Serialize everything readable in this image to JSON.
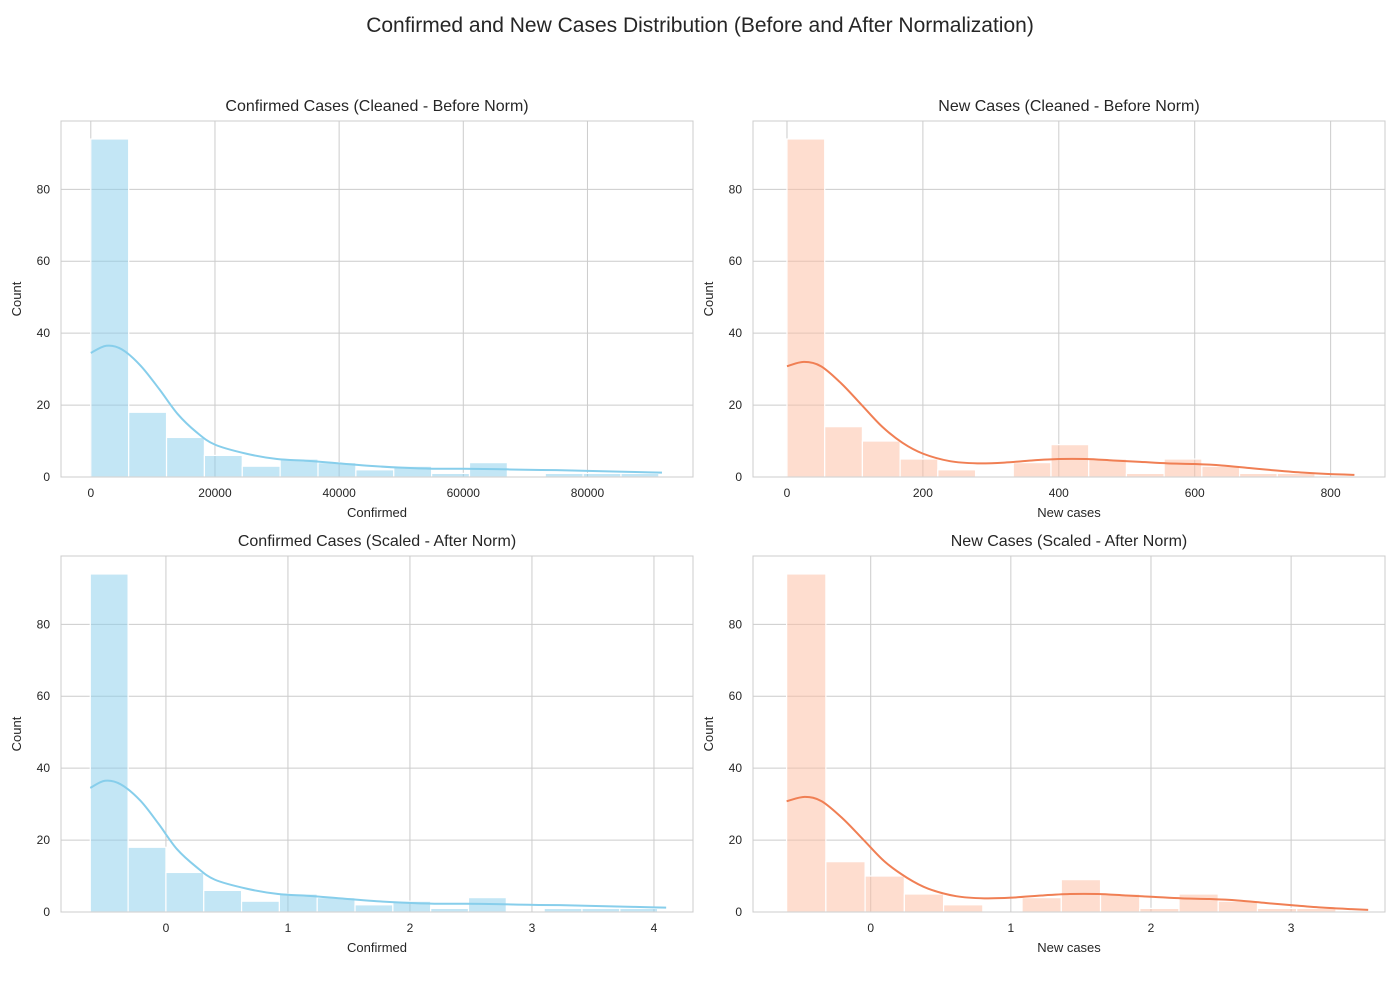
{
  "figure": {
    "title": "Confirmed and New Cases Distribution (Before and After Normalization)"
  },
  "chart_data": [
    {
      "type": "bar",
      "subtype": "histogram_with_kde",
      "title": "Confirmed Cases (Cleaned - Before Norm)",
      "xlabel": "Confirmed",
      "ylabel": "Count",
      "color": "#87CEEB",
      "line_color": "#87CEEB",
      "xlim": [
        -4800,
        97000
      ],
      "ylim": [
        0,
        99
      ],
      "xticks": [
        0,
        20000,
        40000,
        60000,
        80000
      ],
      "yticks": [
        0,
        20,
        40,
        60,
        80
      ],
      "grid": true,
      "bins": [
        {
          "x0": 0,
          "x1": 6100,
          "count": 94
        },
        {
          "x0": 6100,
          "x1": 12200,
          "count": 18
        },
        {
          "x0": 12200,
          "x1": 18300,
          "count": 11
        },
        {
          "x0": 18300,
          "x1": 24400,
          "count": 6
        },
        {
          "x0": 24400,
          "x1": 30500,
          "count": 3
        },
        {
          "x0": 30500,
          "x1": 36600,
          "count": 5
        },
        {
          "x0": 36600,
          "x1": 42700,
          "count": 4
        },
        {
          "x0": 42700,
          "x1": 48800,
          "count": 2
        },
        {
          "x0": 48800,
          "x1": 54900,
          "count": 3
        },
        {
          "x0": 54900,
          "x1": 61000,
          "count": 1
        },
        {
          "x0": 61000,
          "x1": 67100,
          "count": 4
        },
        {
          "x0": 67100,
          "x1": 73200,
          "count": 0
        },
        {
          "x0": 73200,
          "x1": 79300,
          "count": 1
        },
        {
          "x0": 79300,
          "x1": 85400,
          "count": 1
        },
        {
          "x0": 85400,
          "x1": 91500,
          "count": 1
        }
      ],
      "kde": {
        "x": [
          0,
          2500,
          5000,
          8000,
          11000,
          14000,
          17000,
          20000,
          25000,
          30000,
          35000,
          40000,
          45000,
          50000,
          55000,
          60000,
          65000,
          70000,
          75000,
          80000,
          85000,
          90000,
          92000
        ],
        "y": [
          34.5,
          36.5,
          35.5,
          31,
          24.5,
          17.5,
          12.5,
          9,
          6.5,
          5,
          4.5,
          3.8,
          3.1,
          2.6,
          2.3,
          2.3,
          2.2,
          2,
          1.9,
          1.7,
          1.5,
          1.3,
          1.2
        ]
      }
    },
    {
      "type": "bar",
      "subtype": "histogram_with_kde",
      "title": "New Cases (Cleaned - Before Norm)",
      "xlabel": "New cases",
      "ylabel": "Count",
      "color": "#FDBBA0",
      "line_color": "#F07F54",
      "xlim": [
        -50,
        880
      ],
      "ylim": [
        0,
        99
      ],
      "xticks": [
        0,
        200,
        400,
        600,
        800
      ],
      "yticks": [
        0,
        20,
        40,
        60,
        80
      ],
      "grid": true,
      "bins": [
        {
          "x0": 0,
          "x1": 55.5,
          "count": 94
        },
        {
          "x0": 55.5,
          "x1": 111,
          "count": 14
        },
        {
          "x0": 111,
          "x1": 166.5,
          "count": 10
        },
        {
          "x0": 166.5,
          "x1": 222,
          "count": 5
        },
        {
          "x0": 222,
          "x1": 277.5,
          "count": 2
        },
        {
          "x0": 277.5,
          "x1": 333,
          "count": 0
        },
        {
          "x0": 333,
          "x1": 388.5,
          "count": 4
        },
        {
          "x0": 388.5,
          "x1": 444,
          "count": 9
        },
        {
          "x0": 444,
          "x1": 499.5,
          "count": 5
        },
        {
          "x0": 499.5,
          "x1": 555,
          "count": 1
        },
        {
          "x0": 555,
          "x1": 610.5,
          "count": 5
        },
        {
          "x0": 610.5,
          "x1": 666,
          "count": 3
        },
        {
          "x0": 666,
          "x1": 721.5,
          "count": 1
        },
        {
          "x0": 721.5,
          "x1": 777,
          "count": 1
        },
        {
          "x0": 777,
          "x1": 832.5,
          "count": 0
        }
      ],
      "kde": {
        "x": [
          0,
          25,
          50,
          80,
          110,
          140,
          170,
          200,
          240,
          280,
          320,
          360,
          400,
          440,
          480,
          520,
          560,
          600,
          640,
          680,
          720,
          760,
          800,
          835
        ],
        "y": [
          30.8,
          32,
          30.8,
          26,
          20,
          14,
          9.5,
          6.5,
          4.4,
          3.8,
          4,
          4.6,
          5,
          5,
          4.6,
          4.2,
          3.8,
          3.6,
          3.2,
          2.5,
          1.8,
          1.2,
          0.8,
          0.6
        ]
      }
    },
    {
      "type": "bar",
      "subtype": "histogram_with_kde",
      "title": "Confirmed Cases (Scaled - After Norm)",
      "xlabel": "Confirmed",
      "ylabel": "Count",
      "color": "#87CEEB",
      "line_color": "#87CEEB",
      "xlim": [
        -0.86,
        4.32
      ],
      "ylim": [
        0,
        99
      ],
      "xticks": [
        0,
        1,
        2,
        3,
        4
      ],
      "yticks": [
        0,
        20,
        40,
        60,
        80
      ],
      "grid": true,
      "bins": [
        {
          "x0": -0.62,
          "x1": -0.31,
          "count": 94
        },
        {
          "x0": -0.31,
          "x1": 0.0,
          "count": 18
        },
        {
          "x0": 0.0,
          "x1": 0.31,
          "count": 11
        },
        {
          "x0": 0.31,
          "x1": 0.62,
          "count": 6
        },
        {
          "x0": 0.62,
          "x1": 0.93,
          "count": 3
        },
        {
          "x0": 0.93,
          "x1": 1.24,
          "count": 5
        },
        {
          "x0": 1.24,
          "x1": 1.55,
          "count": 4
        },
        {
          "x0": 1.55,
          "x1": 1.86,
          "count": 2
        },
        {
          "x0": 1.86,
          "x1": 2.17,
          "count": 3
        },
        {
          "x0": 2.17,
          "x1": 2.48,
          "count": 1
        },
        {
          "x0": 2.48,
          "x1": 2.79,
          "count": 4
        },
        {
          "x0": 2.79,
          "x1": 3.1,
          "count": 0
        },
        {
          "x0": 3.1,
          "x1": 3.41,
          "count": 1
        },
        {
          "x0": 3.41,
          "x1": 3.72,
          "count": 1
        },
        {
          "x0": 3.72,
          "x1": 4.03,
          "count": 1
        }
      ],
      "kde": {
        "x": [
          -0.62,
          -0.5,
          -0.37,
          -0.21,
          -0.06,
          0.09,
          0.25,
          0.4,
          0.66,
          0.92,
          1.17,
          1.43,
          1.69,
          1.94,
          2.2,
          2.46,
          2.71,
          2.97,
          3.23,
          3.48,
          3.74,
          4.0,
          4.1
        ],
        "y": [
          34.5,
          36.5,
          35.5,
          31,
          24.5,
          17.5,
          12.5,
          9,
          6.5,
          5,
          4.5,
          3.8,
          3.1,
          2.6,
          2.3,
          2.3,
          2.2,
          2,
          1.9,
          1.7,
          1.5,
          1.3,
          1.2
        ]
      }
    },
    {
      "type": "bar",
      "subtype": "histogram_with_kde",
      "title": "New Cases (Scaled - After Norm)",
      "xlabel": "New cases",
      "ylabel": "Count",
      "color": "#FDBBA0",
      "line_color": "#F07F54",
      "xlim": [
        -0.84,
        3.67
      ],
      "ylim": [
        0,
        99
      ],
      "xticks": [
        0,
        1,
        2,
        3
      ],
      "yticks": [
        0,
        20,
        40,
        60,
        80
      ],
      "grid": true,
      "bins": [
        {
          "x0": -0.6,
          "x1": -0.32,
          "count": 94
        },
        {
          "x0": -0.32,
          "x1": -0.04,
          "count": 14
        },
        {
          "x0": -0.04,
          "x1": 0.24,
          "count": 10
        },
        {
          "x0": 0.24,
          "x1": 0.52,
          "count": 5
        },
        {
          "x0": 0.52,
          "x1": 0.8,
          "count": 2
        },
        {
          "x0": 0.8,
          "x1": 1.08,
          "count": 0
        },
        {
          "x0": 1.08,
          "x1": 1.36,
          "count": 4
        },
        {
          "x0": 1.36,
          "x1": 1.64,
          "count": 9
        },
        {
          "x0": 1.64,
          "x1": 1.92,
          "count": 5
        },
        {
          "x0": 1.92,
          "x1": 2.2,
          "count": 1
        },
        {
          "x0": 2.2,
          "x1": 2.48,
          "count": 5
        },
        {
          "x0": 2.48,
          "x1": 2.76,
          "count": 3
        },
        {
          "x0": 2.76,
          "x1": 3.04,
          "count": 1
        },
        {
          "x0": 3.04,
          "x1": 3.32,
          "count": 1
        },
        {
          "x0": 3.32,
          "x1": 3.6,
          "count": 0
        }
      ],
      "kde": {
        "x": [
          -0.6,
          -0.47,
          -0.35,
          -0.2,
          -0.05,
          0.1,
          0.26,
          0.41,
          0.61,
          0.81,
          1.01,
          1.22,
          1.42,
          1.62,
          1.82,
          2.02,
          2.22,
          2.42,
          2.62,
          2.82,
          3.03,
          3.23,
          3.43,
          3.55
        ],
        "y": [
          30.8,
          32,
          30.8,
          26,
          20,
          14,
          9.5,
          6.5,
          4.4,
          3.8,
          4,
          4.6,
          5,
          5,
          4.6,
          4.2,
          3.8,
          3.6,
          3.2,
          2.5,
          1.8,
          1.2,
          0.8,
          0.6
        ]
      }
    }
  ]
}
